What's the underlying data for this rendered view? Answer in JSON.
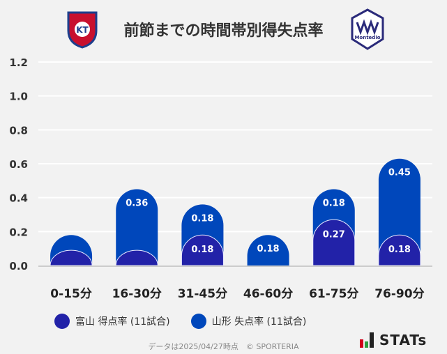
{
  "title": "前節までの時間帯別得失点率",
  "logos": {
    "left": "カターレ富山 crest",
    "right": "Montedio YAMAGATA"
  },
  "chart_data": {
    "type": "bar",
    "stacked": true,
    "categories": [
      "0-15分",
      "16-30分",
      "31-45分",
      "46-60分",
      "61-75分",
      "76-90分"
    ],
    "series": [
      {
        "name": "富山 得点率 (11試合)",
        "color": "#2222a8",
        "values": [
          0.09,
          0.09,
          0.18,
          0,
          0.27,
          0.18
        ],
        "labels": [
          "",
          "",
          "0.18",
          "",
          "0.27",
          "0.18"
        ]
      },
      {
        "name": "山形 失点率 (11試合)",
        "color": "#0047bb",
        "values": [
          0.09,
          0.36,
          0.18,
          0.18,
          0.18,
          0.45
        ],
        "labels": [
          "",
          "0.36",
          "0.18",
          "0.18",
          "0.18",
          "0.45"
        ]
      }
    ],
    "yticks": [
      "0.0",
      "0.2",
      "0.4",
      "0.6",
      "0.8",
      "1.0",
      "1.2"
    ],
    "ylim": [
      0,
      1.2
    ],
    "grid": true,
    "legend": "bottom"
  },
  "footer": "データは2025/04/27時点　© SPORTERIA",
  "brand": "STATs"
}
